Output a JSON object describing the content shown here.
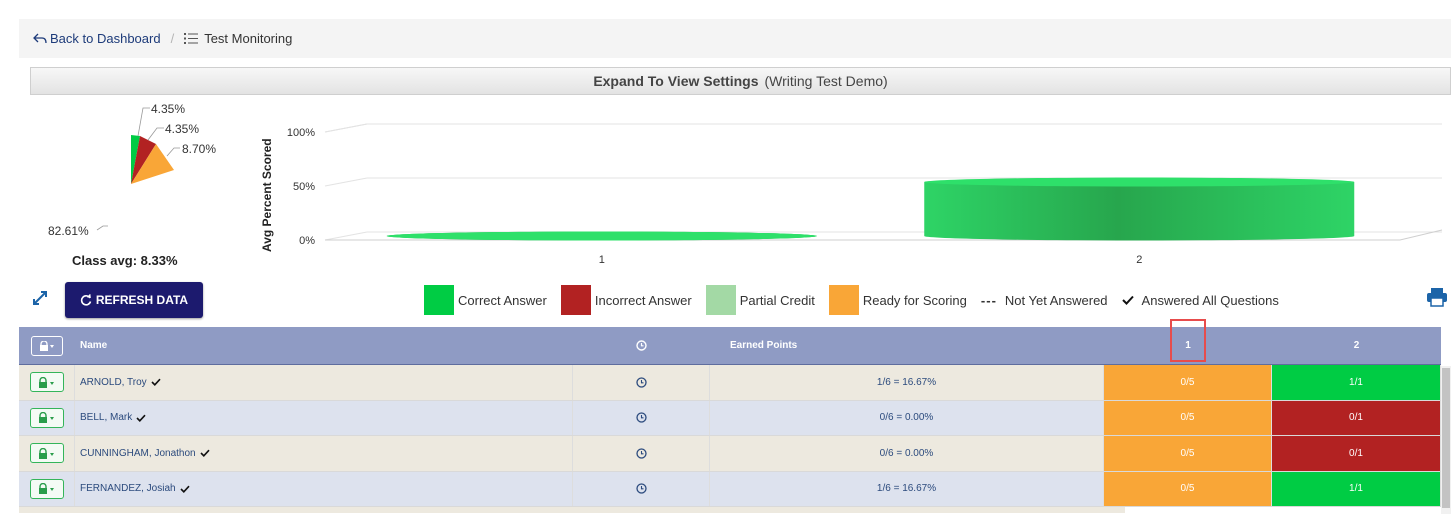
{
  "breadcrumb": {
    "back_label": "Back to Dashboard",
    "separator": "/",
    "current_label": "Test Monitoring"
  },
  "settings_bar": {
    "label": "Expand To View Settings",
    "test_name": "(Writing Test Demo)"
  },
  "pie": {
    "labels": [
      "4.35%",
      "4.35%",
      "8.70%",
      "82.61%"
    ],
    "class_avg": "Class avg: 8.33%"
  },
  "chart_data": {
    "type": "bar",
    "categories": [
      "1",
      "2"
    ],
    "values": [
      0,
      50
    ],
    "ylabel": "Avg Percent Scored",
    "yticks": [
      "0%",
      "50%",
      "100%"
    ],
    "ylim": [
      0,
      100
    ],
    "style": "3d-cylinder",
    "color": "#22c55e"
  },
  "toolbar": {
    "refresh_label": "REFRESH DATA"
  },
  "legend": [
    {
      "label": "Correct Answer",
      "color": "#00cc44"
    },
    {
      "label": "Incorrect Answer",
      "color": "#b22222"
    },
    {
      "label": "Partial Credit",
      "color": "#a3d9a5"
    },
    {
      "label": "Ready for Scoring",
      "color": "#f9a637"
    },
    {
      "label": "Not Yet Answered",
      "marker": "---"
    },
    {
      "label": "Answered All Questions",
      "marker": "check"
    }
  ],
  "table": {
    "headers": {
      "name": "Name",
      "earned_points": "Earned Points",
      "q1": "1",
      "q2": "2"
    },
    "rows": [
      {
        "name": "ARNOLD, Troy",
        "points": "1/6 = 16.67%",
        "q1": "0/5",
        "q2": "1/1"
      },
      {
        "name": "BELL, Mark",
        "points": "0/6 = 0.00%",
        "q1": "0/5",
        "q2": "0/1"
      },
      {
        "name": "CUNNINGHAM, Jonathon",
        "points": "0/6 = 0.00%",
        "q1": "0/5",
        "q2": "0/1"
      },
      {
        "name": "FERNANDEZ, Josiah",
        "points": "1/6 = 16.67%",
        "q1": "0/5",
        "q2": "1/1"
      }
    ]
  },
  "colors": {
    "ready": "#f9a637",
    "correct": "#00cc44",
    "incorrect": "#b22222"
  }
}
